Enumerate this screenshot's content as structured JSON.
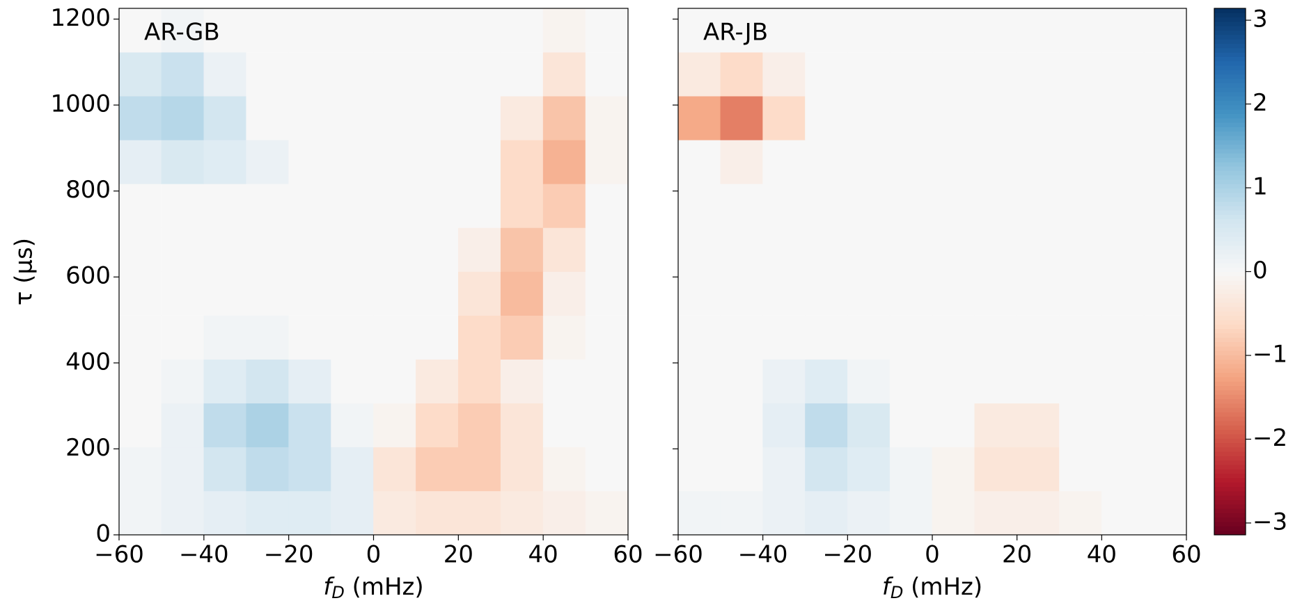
{
  "chart_data": [
    {
      "type": "heatmap",
      "annotation": "AR-GB",
      "colormap": "RdBu",
      "xlim": [
        -60,
        60
      ],
      "ylim": [
        0,
        1225
      ],
      "zlim": [
        -3.14159,
        3.14159
      ],
      "xticks": [
        {
          "value": -60,
          "label": "−60"
        },
        {
          "value": -40,
          "label": "−40"
        },
        {
          "value": -20,
          "label": "−20"
        },
        0,
        20,
        40,
        60
      ],
      "yticks": [
        0,
        200,
        400,
        600,
        800,
        1000,
        1200
      ],
      "show_ytick_labels": true,
      "xlabel": {
        "var": "f",
        "sub": "D",
        "rest": " (mHz)"
      },
      "ylabel": "τ (μs)",
      "z": [
        [
          0.1,
          0.2,
          0.3,
          0.4,
          0.4,
          0.3,
          -0.3,
          -0.4,
          -0.4,
          -0.3,
          -0.2,
          -0.1
        ],
        [
          0.1,
          0.2,
          0.6,
          0.8,
          0.7,
          0.3,
          -0.4,
          -0.8,
          -0.8,
          -0.4,
          -0.1,
          0
        ],
        [
          0,
          0.2,
          0.8,
          1.0,
          0.7,
          0.1,
          -0.1,
          -0.6,
          -0.8,
          -0.4,
          0,
          0
        ],
        [
          0,
          0.1,
          0.4,
          0.6,
          0.3,
          0,
          0,
          -0.3,
          -0.6,
          -0.2,
          0,
          0
        ],
        [
          0,
          0,
          0.1,
          0.1,
          0,
          0,
          0,
          0,
          -0.6,
          -0.8,
          -0.1,
          0
        ],
        [
          0,
          0,
          0,
          0,
          0,
          0,
          0,
          0,
          -0.4,
          -1.0,
          -0.2,
          0
        ],
        [
          0,
          0,
          0,
          0,
          0,
          0,
          0,
          0,
          -0.2,
          -0.9,
          -0.4,
          0
        ],
        [
          0,
          0,
          0,
          0,
          0,
          0,
          0,
          0,
          0,
          -0.6,
          -0.8,
          0
        ],
        [
          0.3,
          0.5,
          0.4,
          0.2,
          0,
          0,
          0,
          0,
          0,
          -0.6,
          -1.1,
          -0.1
        ],
        [
          0.8,
          0.9,
          0.6,
          0,
          0,
          0,
          0,
          0,
          0,
          -0.3,
          -0.9,
          -0.1
        ],
        [
          0.5,
          0.7,
          0.2,
          0,
          0,
          0,
          0,
          0,
          0,
          0,
          -0.4,
          0
        ],
        [
          0,
          0.1,
          0,
          0,
          0,
          0,
          0,
          0,
          0,
          0,
          -0.1,
          0
        ]
      ]
    },
    {
      "type": "heatmap",
      "annotation": "AR-JB",
      "colormap": "RdBu",
      "xlim": [
        -60,
        60
      ],
      "ylim": [
        0,
        1225
      ],
      "zlim": [
        -3.14159,
        3.14159
      ],
      "xticks": [
        {
          "value": -60,
          "label": "−60"
        },
        {
          "value": -40,
          "label": "−40"
        },
        {
          "value": -20,
          "label": "−20"
        },
        0,
        20,
        40,
        60
      ],
      "yticks": [
        0,
        200,
        400,
        600,
        800,
        1000,
        1200
      ],
      "show_ytick_labels": false,
      "xlabel": {
        "var": "f",
        "sub": "D",
        "rest": " (mHz)"
      },
      "colorbar": true,
      "zticks": [
        {
          "value": -3,
          "label": "−3"
        },
        {
          "value": -2,
          "label": "−2"
        },
        {
          "value": -1,
          "label": "−1"
        },
        0,
        1,
        2,
        3
      ],
      "z": [
        [
          0.1,
          0.1,
          0.2,
          0.3,
          0.2,
          0.1,
          -0.1,
          -0.2,
          -0.2,
          -0.1,
          0,
          0
        ],
        [
          0,
          0,
          0.2,
          0.6,
          0.4,
          0.1,
          -0.1,
          -0.4,
          -0.4,
          0,
          0,
          0
        ],
        [
          0,
          0,
          0.3,
          0.8,
          0.5,
          0,
          0,
          -0.3,
          -0.3,
          0,
          0,
          0
        ],
        [
          0,
          0,
          0.2,
          0.4,
          0.1,
          0,
          0,
          0,
          0,
          0,
          0,
          0
        ],
        [
          0,
          0,
          0,
          0,
          0,
          0,
          0,
          0,
          0,
          0,
          0,
          0
        ],
        [
          0,
          0,
          0,
          0,
          0,
          0,
          0,
          0,
          0,
          0,
          0,
          0
        ],
        [
          0,
          0,
          0,
          0,
          0,
          0,
          0,
          0,
          0,
          0,
          0,
          0
        ],
        [
          0,
          0,
          0,
          0,
          0,
          0,
          0,
          0,
          0,
          0,
          0,
          0
        ],
        [
          0,
          -0.2,
          0,
          0,
          0,
          0,
          0,
          0,
          0,
          0,
          0,
          0
        ],
        [
          -1.2,
          -1.6,
          -0.6,
          0,
          0,
          0,
          0,
          0,
          0,
          0,
          0,
          0
        ],
        [
          -0.3,
          -0.6,
          -0.2,
          0,
          0,
          0,
          0,
          0,
          0,
          0,
          0,
          0
        ],
        [
          0,
          0,
          0,
          0,
          0,
          0,
          0,
          0,
          0,
          0,
          0,
          0
        ]
      ]
    }
  ]
}
